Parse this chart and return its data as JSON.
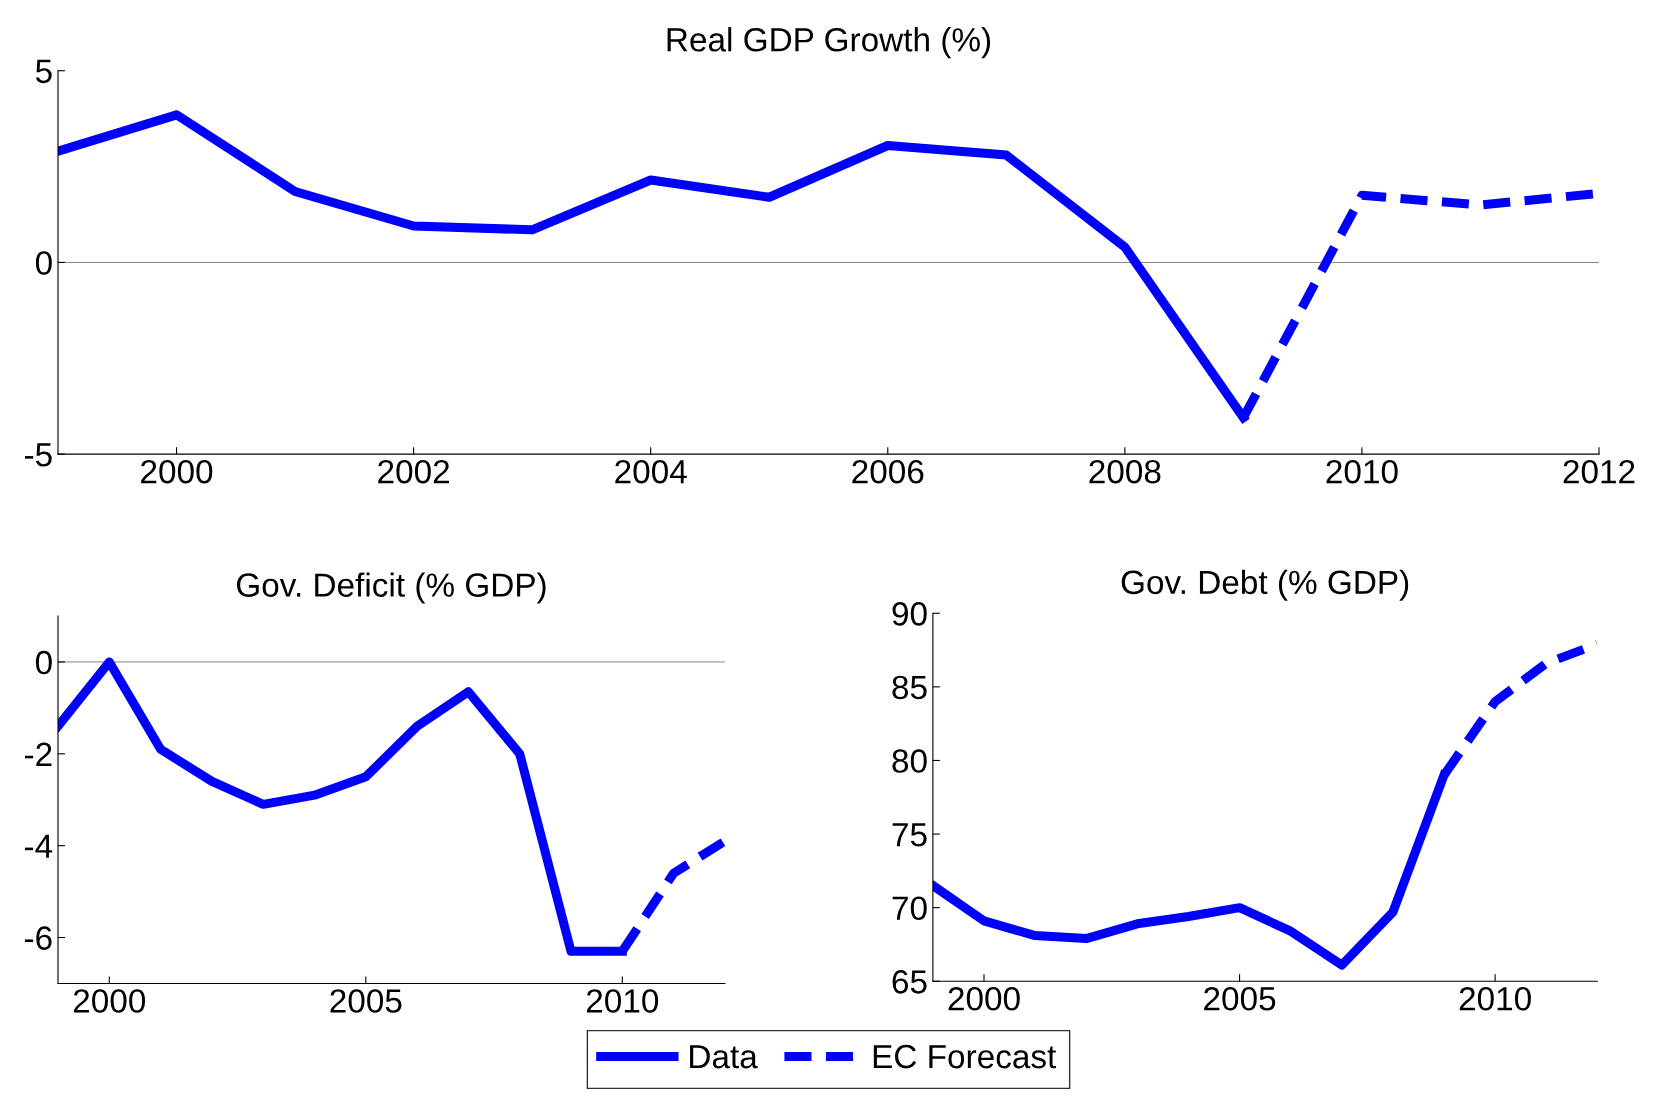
{
  "chart_data": [
    {
      "type": "line",
      "title": "Real GDP Growth (%)",
      "xlim": [
        1999,
        2012
      ],
      "xticks": [
        2000,
        2002,
        2004,
        2006,
        2008,
        2010,
        2012
      ],
      "ylim": [
        -5,
        5
      ],
      "yticks": [
        -5,
        0,
        5
      ],
      "grid": false,
      "legend": "bottom",
      "ref_lines": [
        {
          "axis": "y",
          "value": 0,
          "color": "#808080",
          "line_style": "solid"
        }
      ],
      "series": [
        {
          "name": "Data",
          "color": "#0000ff",
          "line_style": "solid",
          "x": [
            1999,
            2000,
            2001,
            2002,
            2003,
            2004,
            2005,
            2006,
            2007,
            2008,
            2009
          ],
          "values": [
            2.9,
            3.85,
            1.85,
            0.95,
            0.85,
            2.15,
            1.7,
            3.05,
            2.8,
            0.4,
            -4.05
          ]
        },
        {
          "name": "EC Forecast",
          "color": "#0000ff",
          "line_style": "dashed",
          "x": [
            2009,
            2010,
            2011,
            2012
          ],
          "values": [
            -4.05,
            1.75,
            1.5,
            1.8
          ]
        }
      ]
    },
    {
      "type": "line",
      "title": "Gov. Deficit (% GDP)",
      "xlim": [
        1999,
        2012
      ],
      "xticks": [
        2000,
        2005,
        2010
      ],
      "ylim": [
        -7,
        1
      ],
      "yticks": [
        -6,
        -4,
        -2,
        0
      ],
      "grid": false,
      "legend": false,
      "ref_lines": [
        {
          "axis": "y",
          "value": 0,
          "color": "#808080",
          "line_style": "solid"
        }
      ],
      "series": [
        {
          "color": "#0000ff",
          "line_style": "solid",
          "x": [
            1999,
            2000,
            2001,
            2002,
            2003,
            2004,
            2005,
            2006,
            2007,
            2008,
            2009,
            2010
          ],
          "values": [
            -1.4,
            0,
            -1.9,
            -2.6,
            -3.1,
            -2.9,
            -2.5,
            -1.4,
            -0.65,
            -2.0,
            -6.3,
            -6.3
          ]
        },
        {
          "color": "#0000ff",
          "line_style": "dashed",
          "x": [
            2010,
            2011,
            2012
          ],
          "values": [
            -6.3,
            -4.6,
            -3.9
          ]
        }
      ]
    },
    {
      "type": "line",
      "title": "Gov. Debt (% GDP)",
      "xlim": [
        1999,
        2012
      ],
      "xticks": [
        2000,
        2005,
        2010
      ],
      "ylim": [
        65,
        90
      ],
      "yticks": [
        65,
        70,
        75,
        80,
        85,
        90
      ],
      "grid": false,
      "legend": false,
      "series": [
        {
          "color": "#0000ff",
          "line_style": "solid",
          "x": [
            1999,
            2000,
            2001,
            2002,
            2003,
            2004,
            2005,
            2006,
            2007,
            2008,
            2009
          ],
          "values": [
            71.5,
            69.1,
            68.1,
            67.9,
            68.9,
            69.4,
            70.0,
            68.4,
            66.1,
            69.7,
            79.0
          ]
        },
        {
          "color": "#0000ff",
          "line_style": "dashed",
          "x": [
            2009,
            2010,
            2011,
            2012
          ],
          "values": [
            79.0,
            84.0,
            86.6,
            87.9
          ]
        }
      ]
    }
  ]
}
